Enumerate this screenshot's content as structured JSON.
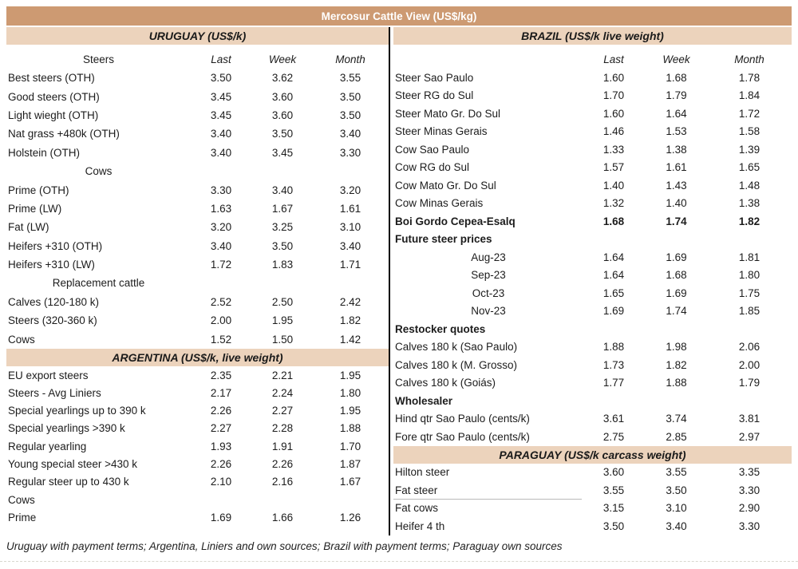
{
  "title": "Mercosur Cattle View (US$/kg)",
  "columns": {
    "last": "Last",
    "week": "Week",
    "month": "Month"
  },
  "footer": "Uruguay with payment terms; Argentina, Liniers and own sources; Brazil with payment terms; Paraguay own sources",
  "colors": {
    "title_bar": "#cd9a72",
    "section_band": "#ecd3bc",
    "divider": "#000000"
  },
  "left": {
    "uruguay": {
      "header": "URUGUAY (US$/k)",
      "col_label": "Steers",
      "rows": [
        {
          "label": "Best steers (OTH)",
          "last": "3.50",
          "week": "3.62",
          "month": "3.55"
        },
        {
          "label": "Good steers (OTH)",
          "last": "3.45",
          "week": "3.60",
          "month": "3.50"
        },
        {
          "label": "Light wieght (OTH)",
          "last": "3.45",
          "week": "3.60",
          "month": "3.50"
        },
        {
          "label": "Nat grass +480k (OTH)",
          "last": "3.40",
          "week": "3.50",
          "month": "3.40"
        },
        {
          "label": "Holstein (OTH)",
          "last": "3.40",
          "week": "3.45",
          "month": "3.30"
        },
        {
          "label": "Cows",
          "style": "center"
        },
        {
          "label": "Prime (OTH)",
          "last": "3.30",
          "week": "3.40",
          "month": "3.20"
        },
        {
          "label": "Prime (LW)",
          "last": "1.63",
          "week": "1.67",
          "month": "1.61"
        },
        {
          "label": "Fat (LW)",
          "last": "3.20",
          "week": "3.25",
          "month": "3.10"
        },
        {
          "label": "Heifers +310 (OTH)",
          "last": "3.40",
          "week": "3.50",
          "month": "3.40"
        },
        {
          "label": "Heifers +310 (LW)",
          "last": "1.72",
          "week": "1.83",
          "month": "1.71"
        },
        {
          "label": "Replacement cattle",
          "style": "center"
        },
        {
          "label": "Calves (120-180 k)",
          "last": "2.52",
          "week": "2.50",
          "month": "2.42"
        },
        {
          "label": "Steers (320-360 k)",
          "last": "2.00",
          "week": "1.95",
          "month": "1.82"
        },
        {
          "label": "Cows",
          "last": "1.52",
          "week": "1.50",
          "month": "1.42"
        }
      ]
    },
    "argentina": {
      "header": "ARGENTINA (US$/k, live weight)",
      "rows": [
        {
          "label": "EU export steers",
          "last": "2.35",
          "week": "2.21",
          "month": "1.95"
        },
        {
          "label": "Steers - Avg Liniers",
          "last": "2.17",
          "week": "2.24",
          "month": "1.80"
        },
        {
          "label": "Special yearlings up to 390 k",
          "last": "2.26",
          "week": "2.27",
          "month": "1.95"
        },
        {
          "label": "Special yearlings >390 k",
          "last": "2.27",
          "week": "2.28",
          "month": "1.88"
        },
        {
          "label": "Regular yearling",
          "last": "1.93",
          "week": "1.91",
          "month": "1.70"
        },
        {
          "label": "Young special steer >430 k",
          "last": "2.26",
          "week": "2.26",
          "month": "1.87"
        },
        {
          "label": "Regular steer up to 430 k",
          "last": "2.10",
          "week": "2.16",
          "month": "1.67"
        },
        {
          "label": "Cows"
        },
        {
          "label": "Prime",
          "last": "1.69",
          "week": "1.66",
          "month": "1.26"
        }
      ]
    }
  },
  "right": {
    "brazil": {
      "header": "BRAZIL  (US$/k live weight)",
      "rows": [
        {
          "label": "Steer Sao Paulo",
          "last": "1.60",
          "week": "1.68",
          "month": "1.78"
        },
        {
          "label": "Steer RG do Sul",
          "last": "1.70",
          "week": "1.79",
          "month": "1.84"
        },
        {
          "label": "Steer Mato Gr. Do Sul",
          "last": "1.60",
          "week": "1.64",
          "month": "1.72"
        },
        {
          "label": "Steer Minas Gerais",
          "last": "1.46",
          "week": "1.53",
          "month": "1.58"
        },
        {
          "label": "Cow Sao Paulo",
          "last": "1.33",
          "week": "1.38",
          "month": "1.39"
        },
        {
          "label": "Cow RG do Sul",
          "last": "1.57",
          "week": "1.61",
          "month": "1.65"
        },
        {
          "label": "Cow Mato Gr. Do Sul",
          "last": "1.40",
          "week": "1.43",
          "month": "1.48"
        },
        {
          "label": "Cow Minas Gerais",
          "last": "1.32",
          "week": "1.40",
          "month": "1.38"
        },
        {
          "label": "Boi Gordo Cepea-Esalq",
          "last": "1.68",
          "week": "1.74",
          "month": "1.82",
          "style": "bold"
        },
        {
          "label": "Future steer prices",
          "style": "boldleft"
        },
        {
          "label": "Aug-23",
          "last": "1.64",
          "week": "1.69",
          "month": "1.81",
          "style": "center"
        },
        {
          "label": "Sep-23",
          "last": "1.64",
          "week": "1.68",
          "month": "1.80",
          "style": "center"
        },
        {
          "label": "Oct-23",
          "last": "1.65",
          "week": "1.69",
          "month": "1.75",
          "style": "center"
        },
        {
          "label": "Nov-23",
          "last": "1.69",
          "week": "1.74",
          "month": "1.85",
          "style": "center"
        },
        {
          "label": "Restocker quotes",
          "style": "boldleft"
        },
        {
          "label": "Calves 180 k (Sao Paulo)",
          "last": "1.88",
          "week": "1.98",
          "month": "2.06"
        },
        {
          "label": "Calves 180 k (M. Grosso)",
          "last": "1.73",
          "week": "1.82",
          "month": "2.00"
        },
        {
          "label": "Calves 180 k (Goiás)",
          "last": "1.77",
          "week": "1.88",
          "month": "1.79"
        },
        {
          "label": "Wholesaler",
          "style": "boldleft"
        },
        {
          "label": "Hind qtr Sao Paulo (cents/k)",
          "last": "3.61",
          "week": "3.74",
          "month": "3.81"
        },
        {
          "label": "Fore qtr Sao Paulo (cents/k)",
          "last": "2.75",
          "week": "2.85",
          "month": "2.97"
        }
      ]
    },
    "paraguay": {
      "header": "PARAGUAY  (US$/k carcass weight)",
      "rows": [
        {
          "label": "Hilton steer",
          "last": "3.60",
          "week": "3.55",
          "month": "3.35"
        },
        {
          "label": "Fat steer",
          "last": "3.55",
          "week": "3.50",
          "month": "3.30",
          "style": "underline"
        },
        {
          "label": "Fat cows",
          "last": "3.15",
          "week": "3.10",
          "month": "2.90"
        },
        {
          "label": "Heifer 4 th",
          "last": "3.50",
          "week": "3.40",
          "month": "3.30"
        }
      ]
    }
  }
}
